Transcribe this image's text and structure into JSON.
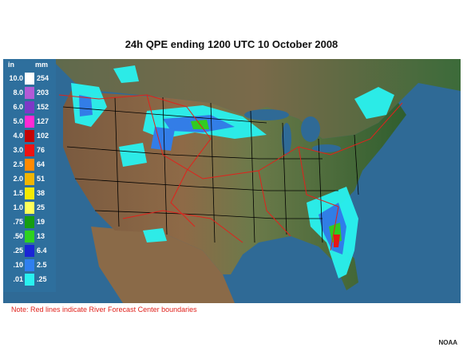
{
  "title": "24h QPE ending 1200 UTC 10 October 2008",
  "legend": {
    "unit_in": "in",
    "unit_mm": "mm",
    "rows": [
      {
        "in": "10.0",
        "mm": "254",
        "color": "#ffffff"
      },
      {
        "in": "8.0",
        "mm": "203",
        "color": "#b35ad6"
      },
      {
        "in": "6.0",
        "mm": "152",
        "color": "#7d39c7"
      },
      {
        "in": "5.0",
        "mm": "127",
        "color": "#ff2ad4"
      },
      {
        "in": "4.0",
        "mm": "102",
        "color": "#c20404"
      },
      {
        "in": "3.0",
        "mm": "76",
        "color": "#ef1212"
      },
      {
        "in": "2.5",
        "mm": "64",
        "color": "#ff8a00"
      },
      {
        "in": "2.0",
        "mm": "51",
        "color": "#f2b500"
      },
      {
        "in": "1.5",
        "mm": "38",
        "color": "#f5e900"
      },
      {
        "in": "1.0",
        "mm": "25",
        "color": "#ffff5a"
      },
      {
        "in": ".75",
        "mm": "19",
        "color": "#159d12"
      },
      {
        "in": ".50",
        "mm": "13",
        "color": "#2ed11f"
      },
      {
        "in": ".25",
        "mm": "6.4",
        "color": "#1a25d6"
      },
      {
        "in": ".10",
        "mm": "2.5",
        "color": "#2f7ff0"
      },
      {
        "in": ".01",
        "mm": ".25",
        "color": "#29f2f0"
      }
    ]
  },
  "note": "Note: Red lines indicate River Forecast Center boundaries",
  "credit": "NOAA",
  "colors": {
    "ocean": "#2f6a96",
    "state_lines": "#000000",
    "rfc_boundaries": "#e0221c"
  }
}
